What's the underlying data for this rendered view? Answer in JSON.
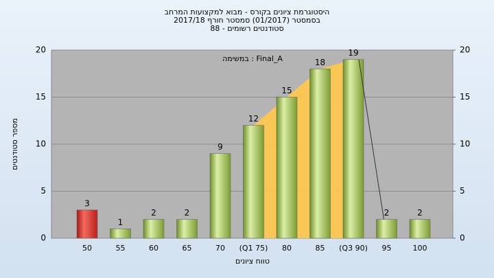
{
  "chart_data": {
    "type": "bar",
    "title": "היסטוגרמת ציונים בקורס - מבוא למקצועות המרחב",
    "subtitle": "בסמסטר  (01/2017)  סמסטר חורף 2017/18",
    "subtitle2": "סטודנטים רשומים - 88",
    "annotation": "Final_A : במשימה",
    "x_label": "טווח ציונים",
    "y_label": "מספר סטודנטים",
    "categories": [
      "50",
      "55",
      "60",
      "65",
      "70",
      "(Q1 75)",
      "80",
      "85",
      "(Q3 90)",
      "95",
      "100"
    ],
    "values": [
      3,
      1,
      2,
      2,
      9,
      12,
      15,
      18,
      19,
      2,
      2
    ],
    "colors": [
      "#d9342b",
      "#8db33a",
      "#8db33a",
      "#8db33a",
      "#8db33a",
      "#8db33a",
      "#8db33a",
      "#8db33a",
      "#8db33a",
      "#8db33a",
      "#8db33a"
    ],
    "quartile_range": [
      5,
      8
    ],
    "quartile_color": "#ffc94a",
    "ylim": [
      0,
      20
    ],
    "yticks": [
      0,
      5,
      10,
      15,
      20
    ],
    "y2lim": [
      0,
      20
    ],
    "y2ticks": [
      0,
      5,
      10,
      15,
      20
    ],
    "grid": true
  }
}
